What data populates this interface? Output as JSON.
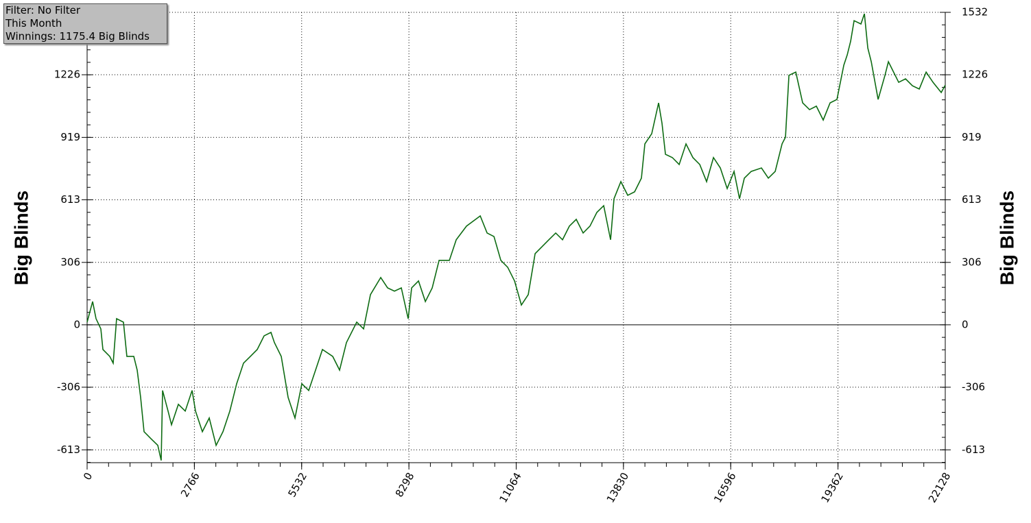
{
  "chart_data": {
    "type": "line",
    "y_label": "Big Blinds",
    "annotations": [
      "Filter: No Filter",
      "This Month",
      "Winnings: 1175.4 Big Blinds"
    ],
    "x": [
      0,
      142,
      230,
      354,
      407,
      584,
      672,
      760,
      937,
      1025,
      1203,
      1291,
      1380,
      1468,
      1645,
      1822,
      1910,
      1946,
      2087,
      2176,
      2353,
      2530,
      2707,
      2795,
      2972,
      3149,
      3326,
      3503,
      3680,
      3856,
      4033,
      4210,
      4387,
      4564,
      4741,
      4829,
      5006,
      5183,
      5360,
      5537,
      5714,
      5891,
      6068,
      6333,
      6510,
      6687,
      6952,
      7129,
      7306,
      7571,
      7748,
      7925,
      8102,
      8279,
      8368,
      8545,
      8722,
      8899,
      9076,
      9341,
      9518,
      9783,
      10137,
      10314,
      10491,
      10668,
      10845,
      11022,
      11198,
      11375,
      11552,
      11729,
      11906,
      12083,
      12259,
      12436,
      12613,
      12790,
      12967,
      13144,
      13321,
      13498,
      13586,
      13763,
      13940,
      14117,
      14293,
      14382,
      14559,
      14736,
      14824,
      14913,
      15090,
      15267,
      15443,
      15620,
      15797,
      15974,
      16151,
      16328,
      16505,
      16682,
      16823,
      16947,
      17124,
      17389,
      17566,
      17743,
      17920,
      18008,
      18097,
      18274,
      18451,
      18628,
      18804,
      18981,
      19158,
      19335,
      19512,
      19600,
      19689,
      19777,
      19954,
      20043,
      20131,
      20220,
      20397,
      20573,
      20662,
      20751,
      20927,
      21104,
      21281,
      21458,
      21635,
      21812,
      22024,
      22128
    ],
    "series": [
      {
        "name": "Winnings",
        "color": "#0d6b12",
        "values": [
          13,
          114,
          30,
          -20,
          -121,
          -155,
          -188,
          30,
          13,
          -155,
          -155,
          -222,
          -356,
          -524,
          -558,
          -591,
          -665,
          -322,
          -423,
          -490,
          -390,
          -423,
          -322,
          -423,
          -524,
          -457,
          -591,
          -524,
          -423,
          -289,
          -188,
          -155,
          -121,
          -54,
          -37,
          -87,
          -155,
          -356,
          -457,
          -289,
          -322,
          -222,
          -121,
          -155,
          -222,
          -87,
          13,
          -20,
          148,
          232,
          181,
          165,
          181,
          30,
          181,
          215,
          114,
          181,
          316,
          316,
          417,
          484,
          534,
          450,
          433,
          316,
          282,
          215,
          97,
          148,
          349,
          383,
          417,
          450,
          417,
          484,
          517,
          450,
          484,
          551,
          584,
          417,
          618,
          702,
          635,
          652,
          719,
          887,
          937,
          1088,
          988,
          836,
          820,
          786,
          887,
          820,
          786,
          702,
          820,
          769,
          668,
          752,
          618,
          719,
          752,
          769,
          719,
          752,
          887,
          920,
          1223,
          1239,
          1088,
          1055,
          1072,
          1004,
          1088,
          1105,
          1273,
          1323,
          1391,
          1491,
          1475,
          1525,
          1357,
          1290,
          1105,
          1223,
          1290,
          1256,
          1189,
          1206,
          1172,
          1156,
          1239,
          1189,
          1139,
          1175
        ]
      }
    ],
    "xlim": [
      0,
      22128
    ],
    "ylim": [
      -676,
      1532
    ],
    "xticks": [
      0,
      2766,
      5532,
      8298,
      11064,
      13830,
      16596,
      19362,
      22128
    ],
    "yticks": [
      -613,
      -306,
      0,
      306,
      613,
      919,
      1226,
      1532
    ],
    "grid": true
  }
}
